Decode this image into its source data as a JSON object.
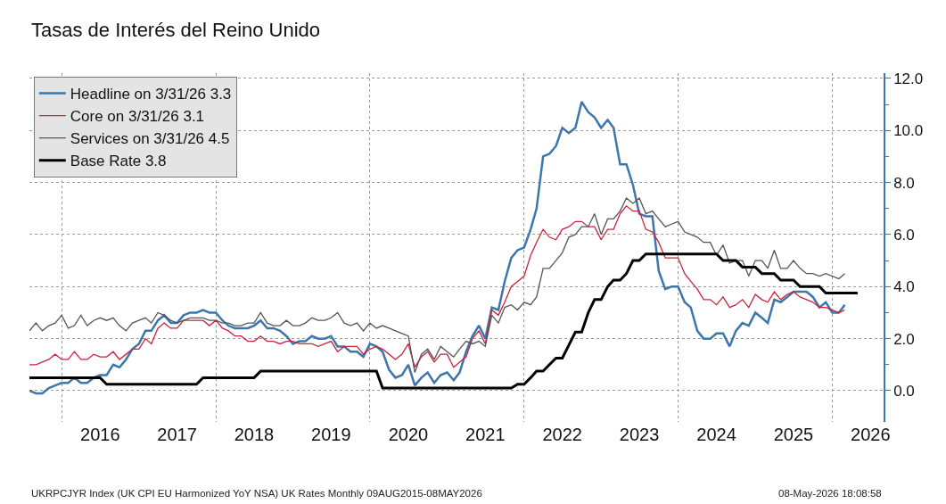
{
  "chart_data": {
    "type": "line",
    "title": "Tasas de Interés del Reino Unido",
    "x": [
      "2015-08",
      "2015-09",
      "2015-10",
      "2015-11",
      "2015-12",
      "2016-01",
      "2016-02",
      "2016-03",
      "2016-04",
      "2016-05",
      "2016-06",
      "2016-07",
      "2016-08",
      "2016-09",
      "2016-10",
      "2016-11",
      "2016-12",
      "2017-01",
      "2017-02",
      "2017-03",
      "2017-04",
      "2017-05",
      "2017-06",
      "2017-07",
      "2017-08",
      "2017-09",
      "2017-10",
      "2017-11",
      "2017-12",
      "2018-01",
      "2018-02",
      "2018-03",
      "2018-04",
      "2018-05",
      "2018-06",
      "2018-07",
      "2018-08",
      "2018-09",
      "2018-10",
      "2018-11",
      "2018-12",
      "2019-01",
      "2019-02",
      "2019-03",
      "2019-04",
      "2019-05",
      "2019-06",
      "2019-07",
      "2019-08",
      "2019-09",
      "2019-10",
      "2019-11",
      "2019-12",
      "2020-01",
      "2020-02",
      "2020-03",
      "2020-04",
      "2020-05",
      "2020-06",
      "2020-07",
      "2020-08",
      "2020-09",
      "2020-10",
      "2020-11",
      "2020-12",
      "2021-01",
      "2021-02",
      "2021-03",
      "2021-04",
      "2021-05",
      "2021-06",
      "2021-07",
      "2021-08",
      "2021-09",
      "2021-10",
      "2021-11",
      "2021-12",
      "2022-01",
      "2022-02",
      "2022-03",
      "2022-04",
      "2022-05",
      "2022-06",
      "2022-07",
      "2022-08",
      "2022-09",
      "2022-10",
      "2022-11",
      "2022-12",
      "2023-01",
      "2023-02",
      "2023-03",
      "2023-04",
      "2023-05",
      "2023-06",
      "2023-07",
      "2023-08",
      "2023-09",
      "2023-10",
      "2023-11",
      "2023-12",
      "2024-01",
      "2024-02",
      "2024-03",
      "2024-04",
      "2024-05",
      "2024-06",
      "2024-07",
      "2024-08",
      "2024-09",
      "2024-10",
      "2024-11",
      "2024-12",
      "2025-01",
      "2025-02",
      "2025-03",
      "2025-04",
      "2025-05",
      "2025-06",
      "2025-07",
      "2025-08",
      "2025-09",
      "2025-10",
      "2025-11",
      "2025-12",
      "2026-01",
      "2026-02",
      "2026-03"
    ],
    "series": [
      {
        "name": "Headline on 3/31/26 3.3",
        "color": "#3d76ab",
        "values": [
          0.0,
          -0.1,
          -0.1,
          0.1,
          0.2,
          0.3,
          0.3,
          0.5,
          0.3,
          0.3,
          0.5,
          0.6,
          0.6,
          1.0,
          0.9,
          1.2,
          1.6,
          1.8,
          2.3,
          2.3,
          2.7,
          2.9,
          2.6,
          2.6,
          2.9,
          3.0,
          3.0,
          3.1,
          3.0,
          3.0,
          2.7,
          2.5,
          2.4,
          2.4,
          2.4,
          2.5,
          2.7,
          2.4,
          2.4,
          2.3,
          2.1,
          1.8,
          1.9,
          1.9,
          2.1,
          2.0,
          2.0,
          2.1,
          1.7,
          1.7,
          1.5,
          1.5,
          1.3,
          1.8,
          1.7,
          1.5,
          0.8,
          0.5,
          0.6,
          1.0,
          0.2,
          0.5,
          0.7,
          0.3,
          0.6,
          0.7,
          0.4,
          0.7,
          1.5,
          2.1,
          2.5,
          2.0,
          3.2,
          3.1,
          4.2,
          5.1,
          5.4,
          5.5,
          6.2,
          7.0,
          9.0,
          9.1,
          9.4,
          10.1,
          9.9,
          10.1,
          11.1,
          10.7,
          10.5,
          10.1,
          10.4,
          10.1,
          8.7,
          8.7,
          7.9,
          6.8,
          6.7,
          6.7,
          4.6,
          3.9,
          4.0,
          4.0,
          3.4,
          3.2,
          2.3,
          2.0,
          2.0,
          2.2,
          2.2,
          1.7,
          2.3,
          2.6,
          2.5,
          3.0,
          2.8,
          2.6,
          3.5,
          3.4,
          3.6,
          3.8,
          3.8,
          3.8,
          3.6,
          3.2,
          3.4,
          3.0,
          3.0,
          3.3
        ]
      },
      {
        "name": "Core on 3/31/26 3.1",
        "color": "#c8243c",
        "values": [
          1.0,
          1.0,
          1.1,
          1.2,
          1.4,
          1.2,
          1.2,
          1.5,
          1.2,
          1.2,
          1.4,
          1.3,
          1.3,
          1.5,
          1.2,
          1.4,
          1.6,
          1.6,
          2.0,
          1.8,
          2.4,
          2.6,
          2.4,
          2.4,
          2.7,
          2.7,
          2.7,
          2.7,
          2.5,
          2.7,
          2.4,
          2.3,
          2.1,
          2.1,
          1.9,
          1.9,
          2.1,
          1.9,
          1.9,
          1.8,
          1.9,
          1.9,
          1.8,
          1.8,
          1.8,
          1.7,
          1.8,
          1.9,
          1.5,
          1.7,
          1.7,
          1.7,
          1.4,
          1.6,
          1.7,
          1.6,
          1.4,
          1.2,
          1.4,
          1.8,
          0.9,
          1.3,
          1.5,
          1.1,
          1.4,
          1.4,
          0.9,
          1.1,
          1.3,
          2.0,
          2.3,
          1.8,
          3.1,
          2.9,
          3.4,
          4.0,
          4.2,
          4.4,
          5.2,
          5.7,
          6.2,
          5.9,
          5.8,
          6.2,
          6.3,
          6.5,
          6.5,
          6.3,
          6.3,
          5.8,
          6.2,
          6.2,
          6.8,
          7.1,
          6.9,
          6.9,
          6.2,
          6.1,
          5.7,
          5.1,
          5.1,
          5.1,
          4.5,
          4.2,
          3.9,
          3.5,
          3.5,
          3.3,
          3.6,
          3.2,
          3.3,
          3.5,
          3.2,
          3.7,
          3.5,
          3.4,
          3.8,
          3.5,
          3.7,
          3.8,
          3.6,
          3.5,
          3.4,
          3.2,
          3.2,
          3.1,
          3.0,
          3.1
        ]
      },
      {
        "name": "Services on 3/31/26 4.5",
        "color": "#555555",
        "values": [
          2.3,
          2.6,
          2.3,
          2.5,
          2.6,
          2.9,
          2.4,
          2.5,
          2.9,
          2.5,
          2.7,
          2.8,
          2.7,
          2.8,
          2.5,
          2.3,
          2.6,
          2.7,
          2.8,
          2.6,
          3.0,
          2.9,
          2.7,
          2.6,
          2.7,
          2.8,
          2.8,
          2.8,
          2.7,
          2.7,
          2.6,
          2.6,
          2.5,
          2.5,
          2.6,
          2.6,
          3.0,
          2.6,
          2.5,
          2.5,
          2.7,
          2.5,
          2.5,
          2.6,
          2.8,
          2.7,
          2.7,
          2.8,
          3.0,
          2.6,
          2.5,
          2.6,
          2.3,
          2.6,
          2.4,
          2.5,
          2.4,
          2.3,
          2.2,
          2.1,
          0.7,
          1.4,
          1.6,
          1.2,
          1.7,
          1.5,
          1.3,
          1.6,
          1.9,
          1.8,
          1.9,
          1.7,
          2.9,
          2.6,
          3.2,
          3.3,
          3.1,
          3.4,
          3.3,
          3.6,
          4.7,
          4.7,
          5.0,
          5.3,
          5.9,
          6.0,
          6.3,
          6.3,
          6.8,
          6.0,
          6.6,
          6.6,
          6.9,
          7.4,
          7.2,
          7.4,
          6.8,
          6.9,
          6.6,
          6.3,
          6.4,
          6.5,
          6.1,
          6.0,
          5.9,
          5.7,
          5.7,
          5.2,
          5.6,
          4.9,
          5.0,
          5.0,
          4.4,
          5.0,
          5.0,
          4.7,
          5.4,
          4.7,
          4.7,
          5.0,
          4.7,
          4.5,
          4.5,
          4.4,
          4.5,
          4.4,
          4.3,
          4.5
        ]
      },
      {
        "name": "Base Rate 3.8",
        "color": "#000000",
        "x": [
          "2015-08",
          "2015-09",
          "2015-10",
          "2015-11",
          "2015-12",
          "2016-01",
          "2016-02",
          "2016-03",
          "2016-04",
          "2016-05",
          "2016-06",
          "2016-07",
          "2016-08",
          "2016-09",
          "2016-10",
          "2016-11",
          "2016-12",
          "2017-01",
          "2017-02",
          "2017-03",
          "2017-04",
          "2017-05",
          "2017-06",
          "2017-07",
          "2017-08",
          "2017-09",
          "2017-10",
          "2017-11",
          "2017-12",
          "2018-01",
          "2018-02",
          "2018-03",
          "2018-04",
          "2018-05",
          "2018-06",
          "2018-07",
          "2018-08",
          "2018-09",
          "2018-10",
          "2018-11",
          "2018-12",
          "2019-01",
          "2019-02",
          "2019-03",
          "2019-04",
          "2019-05",
          "2019-06",
          "2019-07",
          "2019-08",
          "2019-09",
          "2019-10",
          "2019-11",
          "2019-12",
          "2020-01",
          "2020-02",
          "2020-03",
          "2020-04",
          "2020-05",
          "2020-06",
          "2020-07",
          "2020-08",
          "2020-09",
          "2020-10",
          "2020-11",
          "2020-12",
          "2021-01",
          "2021-02",
          "2021-03",
          "2021-04",
          "2021-05",
          "2021-06",
          "2021-07",
          "2021-08",
          "2021-09",
          "2021-10",
          "2021-11",
          "2021-12",
          "2022-01",
          "2022-02",
          "2022-03",
          "2022-04",
          "2022-05",
          "2022-06",
          "2022-07",
          "2022-08",
          "2022-09",
          "2022-10",
          "2022-11",
          "2022-12",
          "2023-01",
          "2023-02",
          "2023-03",
          "2023-04",
          "2023-05",
          "2023-06",
          "2023-07",
          "2023-08",
          "2023-09",
          "2023-10",
          "2023-11",
          "2023-12",
          "2024-01",
          "2024-02",
          "2024-03",
          "2024-04",
          "2024-05",
          "2024-06",
          "2024-07",
          "2024-08",
          "2024-09",
          "2024-10",
          "2024-11",
          "2024-12",
          "2025-01",
          "2025-02",
          "2025-03",
          "2025-04",
          "2025-05",
          "2025-06",
          "2025-07",
          "2025-08",
          "2025-09",
          "2025-10",
          "2025-11",
          "2025-12",
          "2026-01",
          "2026-02",
          "2026-03",
          "2026-04",
          "2026-05"
        ],
        "values": [
          0.5,
          0.5,
          0.5,
          0.5,
          0.5,
          0.5,
          0.5,
          0.5,
          0.5,
          0.5,
          0.5,
          0.5,
          0.25,
          0.25,
          0.25,
          0.25,
          0.25,
          0.25,
          0.25,
          0.25,
          0.25,
          0.25,
          0.25,
          0.25,
          0.25,
          0.25,
          0.25,
          0.5,
          0.5,
          0.5,
          0.5,
          0.5,
          0.5,
          0.5,
          0.5,
          0.5,
          0.75,
          0.75,
          0.75,
          0.75,
          0.75,
          0.75,
          0.75,
          0.75,
          0.75,
          0.75,
          0.75,
          0.75,
          0.75,
          0.75,
          0.75,
          0.75,
          0.75,
          0.75,
          0.75,
          0.1,
          0.1,
          0.1,
          0.1,
          0.1,
          0.1,
          0.1,
          0.1,
          0.1,
          0.1,
          0.1,
          0.1,
          0.1,
          0.1,
          0.1,
          0.1,
          0.1,
          0.1,
          0.1,
          0.1,
          0.1,
          0.25,
          0.25,
          0.5,
          0.75,
          0.75,
          1.0,
          1.25,
          1.25,
          1.75,
          2.25,
          2.25,
          3.0,
          3.5,
          3.5,
          4.0,
          4.25,
          4.25,
          4.5,
          5.0,
          5.0,
          5.25,
          5.25,
          5.25,
          5.25,
          5.25,
          5.25,
          5.25,
          5.25,
          5.25,
          5.25,
          5.25,
          5.25,
          5.0,
          5.0,
          5.0,
          4.75,
          4.75,
          4.75,
          4.5,
          4.5,
          4.5,
          4.25,
          4.25,
          4.25,
          4.0,
          4.0,
          4.0,
          4.0,
          3.75,
          3.75,
          3.75,
          3.75,
          3.75,
          3.75
        ]
      }
    ],
    "xlim": [
      "2015-08-01",
      "2026-09-01"
    ],
    "xticks": [
      {
        "value": "2016-01-01",
        "label": null
      },
      {
        "value": "2016-07-01",
        "label": "2016"
      },
      {
        "value": "2017-07-01",
        "label": "2017"
      },
      {
        "value": "2018-01-01",
        "label": null
      },
      {
        "value": "2018-07-01",
        "label": "2018"
      },
      {
        "value": "2019-07-01",
        "label": "2019"
      },
      {
        "value": "2020-01-01",
        "label": null
      },
      {
        "value": "2020-07-01",
        "label": "2020"
      },
      {
        "value": "2021-07-01",
        "label": "2021"
      },
      {
        "value": "2022-01-01",
        "label": null
      },
      {
        "value": "2022-07-01",
        "label": "2022"
      },
      {
        "value": "2023-07-01",
        "label": "2023"
      },
      {
        "value": "2024-01-01",
        "label": null
      },
      {
        "value": "2024-07-01",
        "label": "2024"
      },
      {
        "value": "2025-07-01",
        "label": "2025"
      },
      {
        "value": "2026-01-01",
        "label": null
      },
      {
        "value": "2026-07-01",
        "label": "2026"
      }
    ],
    "ylim": [
      -1.2,
      12.2
    ],
    "yticks": [
      {
        "value": 0,
        "label": "0.0"
      },
      {
        "value": 1,
        "label": null
      },
      {
        "value": 2,
        "label": "2.0"
      },
      {
        "value": 3,
        "label": null
      },
      {
        "value": 4,
        "label": "4.0"
      },
      {
        "value": 5,
        "label": null
      },
      {
        "value": 6,
        "label": "6.0"
      },
      {
        "value": 7,
        "label": null
      },
      {
        "value": 8,
        "label": "8.0"
      },
      {
        "value": 9,
        "label": null
      },
      {
        "value": 10,
        "label": "10.0"
      },
      {
        "value": 11,
        "label": null
      },
      {
        "value": 12,
        "label": "12.0"
      }
    ],
    "grid": true,
    "legend": "top left",
    "line_style": "solid",
    "marker": "none",
    "annotations": [
      "UKRPCJYR Index (UK CPI EU Harmonized YoY NSA) UK Rates Monthly 09AUG2015-08MAY2026",
      "08-May-2026 18:08:58"
    ]
  }
}
